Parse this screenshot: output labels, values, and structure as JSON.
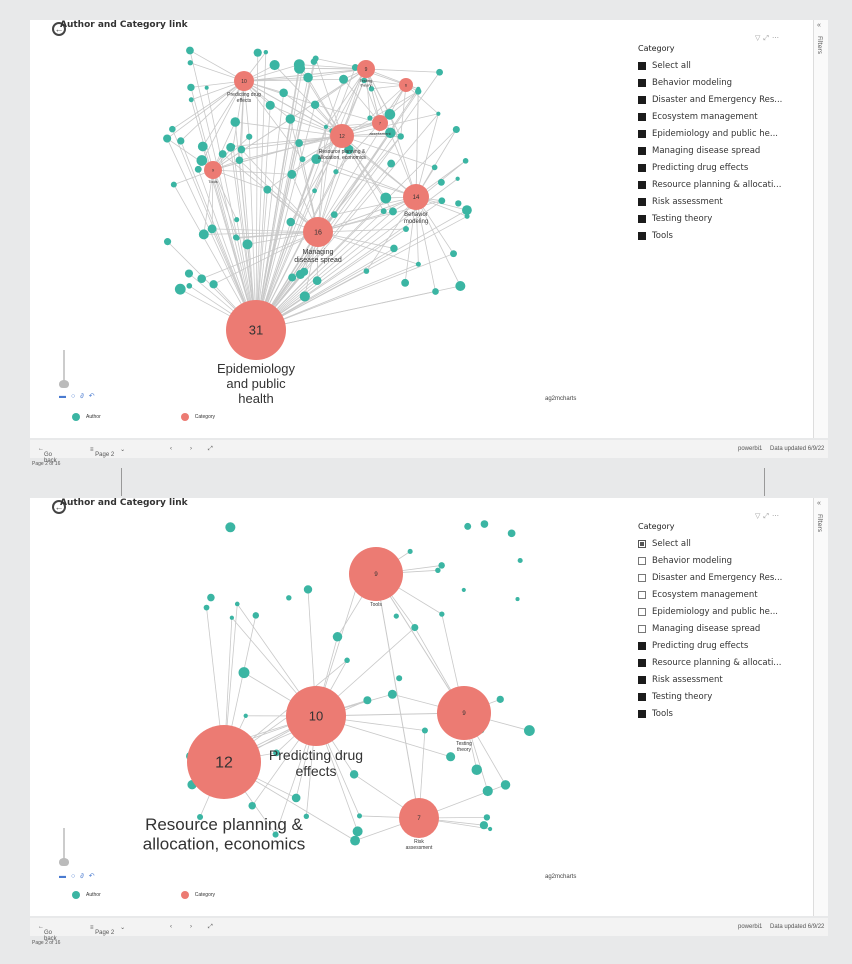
{
  "colors": {
    "author": "#3bb5a3",
    "category": "#ec7b73",
    "edge": "#c9c9c9"
  },
  "icons": [
    "back-arrow-icon",
    "filter-icon",
    "expand-icon",
    "more-options-icon",
    "chevron-left-icon",
    "chevron-right-icon",
    "pin-icon",
    "zoom-icon",
    "refresh-icon",
    "link-icon",
    "undo-icon"
  ],
  "top": {
    "title": "Author and Category link",
    "filters_label": "Filters",
    "slicer": {
      "header": "Category",
      "items": [
        {
          "label": "Select all",
          "state": "on"
        },
        {
          "label": "Behavior modeling",
          "state": "on"
        },
        {
          "label": "Disaster and Emergency Res...",
          "state": "on"
        },
        {
          "label": "Ecosystem management",
          "state": "on"
        },
        {
          "label": "Epidemiology and public he...",
          "state": "on"
        },
        {
          "label": "Managing disease spread",
          "state": "on"
        },
        {
          "label": "Predicting drug effects",
          "state": "on"
        },
        {
          "label": "Resource planning & allocati...",
          "state": "on"
        },
        {
          "label": "Risk assessment",
          "state": "on"
        },
        {
          "label": "Testing theory",
          "state": "on"
        },
        {
          "label": "Tools",
          "state": "on"
        }
      ]
    },
    "graph": {
      "categories": [
        {
          "value": "31",
          "label": [
            "Epidemiology",
            "and public",
            "health"
          ]
        },
        {
          "value": "16",
          "label": [
            "Managing",
            "disease spread"
          ]
        },
        {
          "value": "14",
          "label": [
            "Behavior",
            "modeling"
          ]
        },
        {
          "value": "12",
          "label": [
            "Resource planning &",
            "allocation, economics"
          ]
        },
        {
          "value": "10",
          "label": [
            "Predicting drug",
            "effects"
          ]
        },
        {
          "value": "9",
          "label": [
            "Testing",
            "theory"
          ]
        },
        {
          "value": "9",
          "label": [
            "Tools"
          ]
        },
        {
          "value": "7",
          "label": [
            "assessment"
          ]
        },
        {
          "value": "6",
          "label": []
        }
      ]
    },
    "legend": {
      "author": "Author",
      "category": "Category"
    },
    "credit": "ag2mcharts"
  },
  "bottom": {
    "title": "Author and Category link",
    "filters_label": "Filters",
    "slicer": {
      "header": "Category",
      "items": [
        {
          "label": "Select all",
          "state": "partial"
        },
        {
          "label": "Behavior modeling",
          "state": "off"
        },
        {
          "label": "Disaster and Emergency Res...",
          "state": "off"
        },
        {
          "label": "Ecosystem management",
          "state": "off"
        },
        {
          "label": "Epidemiology and public he...",
          "state": "off"
        },
        {
          "label": "Managing disease spread",
          "state": "off"
        },
        {
          "label": "Predicting drug effects",
          "state": "on"
        },
        {
          "label": "Resource planning & allocati...",
          "state": "on"
        },
        {
          "label": "Risk assessment",
          "state": "on"
        },
        {
          "label": "Testing theory",
          "state": "on"
        },
        {
          "label": "Tools",
          "state": "on"
        }
      ]
    },
    "graph": {
      "categories": [
        {
          "value": "12",
          "label": [
            "Resource planning &",
            "allocation, economics"
          ]
        },
        {
          "value": "10",
          "label": [
            "Predicting drug",
            "effects"
          ]
        },
        {
          "value": "9",
          "label": [
            "Testing",
            "theory"
          ]
        },
        {
          "value": "9",
          "label": [
            "Tools"
          ]
        },
        {
          "value": "7",
          "label": [
            "Risk",
            "assessment"
          ]
        }
      ]
    },
    "legend": {
      "author": "Author",
      "category": "Category"
    },
    "credit": "ag2mcharts"
  },
  "navbar": {
    "go_back": "Go back",
    "page_select": "Page 2",
    "user": "powerbi1",
    "data_updated": "Data updated 6/9/22",
    "page_status": "Page 2 of 16"
  }
}
